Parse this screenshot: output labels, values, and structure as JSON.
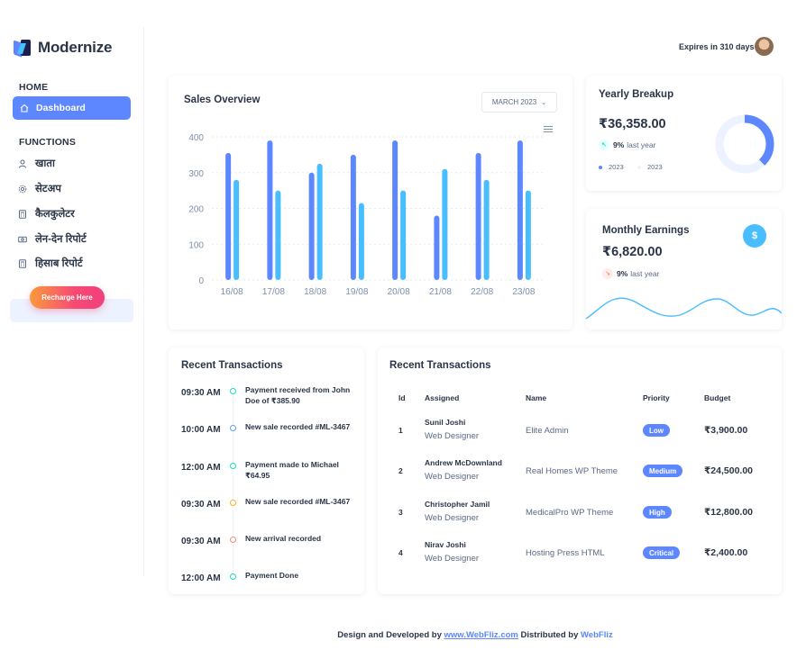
{
  "brand": {
    "name": "Modernize"
  },
  "sidebar": {
    "home_caption": "HOME",
    "dashboard_label": "Dashboard",
    "functions_caption": "FUNCTIONS",
    "items": [
      {
        "label": "खाता",
        "icon": "user-icon"
      },
      {
        "label": "सेटअप",
        "icon": "settings-icon"
      },
      {
        "label": "कैलकुलेटर",
        "icon": "calculator-icon"
      },
      {
        "label": "लेन-देन रिपोर्ट",
        "icon": "cash-icon"
      },
      {
        "label": "हिसाब रिपोर्ट",
        "icon": "calculator-icon"
      }
    ],
    "recharge_label": "Recharge Here"
  },
  "header": {
    "expires_text": "Expires in 310 days"
  },
  "sales_overview": {
    "title": "Sales Overview",
    "month": "MARCH 2023"
  },
  "chart_data": {
    "type": "bar",
    "title": "Sales Overview",
    "categories": [
      "16/08",
      "17/08",
      "18/08",
      "19/08",
      "20/08",
      "21/08",
      "22/08",
      "23/08"
    ],
    "series": [
      {
        "values": [
          355,
          390,
          300,
          350,
          390,
          180,
          355,
          390
        ],
        "color": "#5d87ff"
      },
      {
        "values": [
          280,
          250,
          325,
          215,
          250,
          310,
          280,
          250
        ],
        "color": "#49beff"
      }
    ],
    "ylim": [
      0,
      400
    ],
    "yticks": [
      0,
      100,
      200,
      300,
      400
    ],
    "grid": true
  },
  "yearly_breakup": {
    "title": "Yearly Breakup",
    "amount": "₹36,358.00",
    "trend_pct": "9%",
    "trend_text": "last year",
    "legend": [
      {
        "label": "2023",
        "color": "#5d87ff"
      },
      {
        "label": "2023",
        "color": "#ecf2ff"
      }
    ],
    "donut_fraction": 0.38
  },
  "monthly_earnings": {
    "title": "Monthly Earnings",
    "amount": "₹6,820.00",
    "trend_pct": "9%",
    "trend_text": "last year"
  },
  "recent_timeline": {
    "title": "Recent Transactions",
    "items": [
      {
        "time": "09:30 AM",
        "text": "Payment received from John Doe of ₹385.90",
        "color": "#13deb9"
      },
      {
        "time": "10:00 AM",
        "text": "New sale recorded #ML-3467",
        "color": "#539bff"
      },
      {
        "time": "12:00 AM",
        "text": "Payment made to Michael ₹64.95",
        "color": "#13deb9"
      },
      {
        "time": "09:30 AM",
        "text": "New sale recorded #ML-3467",
        "color": "#ffae1f"
      },
      {
        "time": "09:30 AM",
        "text": "New arrival recorded",
        "color": "#fa896b"
      },
      {
        "time": "12:00 AM",
        "text": "Payment Done",
        "color": "#13deb9"
      }
    ]
  },
  "recent_table": {
    "title": "Recent Transactions",
    "headers": {
      "id": "Id",
      "assigned": "Assigned",
      "name": "Name",
      "priority": "Priority",
      "budget": "Budget"
    },
    "rows": [
      {
        "id": "1",
        "person": "Sunil Joshi",
        "role": "Web Designer",
        "name": "Elite Admin",
        "priority": "Low",
        "color": "#5d87ff",
        "budget": "₹3,900.00"
      },
      {
        "id": "2",
        "person": "Andrew McDownland",
        "role": "Web Designer",
        "name": "Real Homes WP Theme",
        "priority": "Medium",
        "color": "#5d87ff",
        "budget": "₹24,500.00"
      },
      {
        "id": "3",
        "person": "Christopher Jamil",
        "role": "Web Designer",
        "name": "MedicalPro WP Theme",
        "priority": "High",
        "color": "#5d87ff",
        "budget": "₹12,800.00"
      },
      {
        "id": "4",
        "person": "Nirav Joshi",
        "role": "Web Designer",
        "name": "Hosting Press HTML",
        "priority": "Critical",
        "color": "#5d87ff",
        "budget": "₹2,400.00"
      }
    ]
  },
  "footer": {
    "prefix": "Design and Developed by",
    "link": "www.WebFliz.com",
    "middle": "Distributed by",
    "distributor": "WebFliz"
  }
}
